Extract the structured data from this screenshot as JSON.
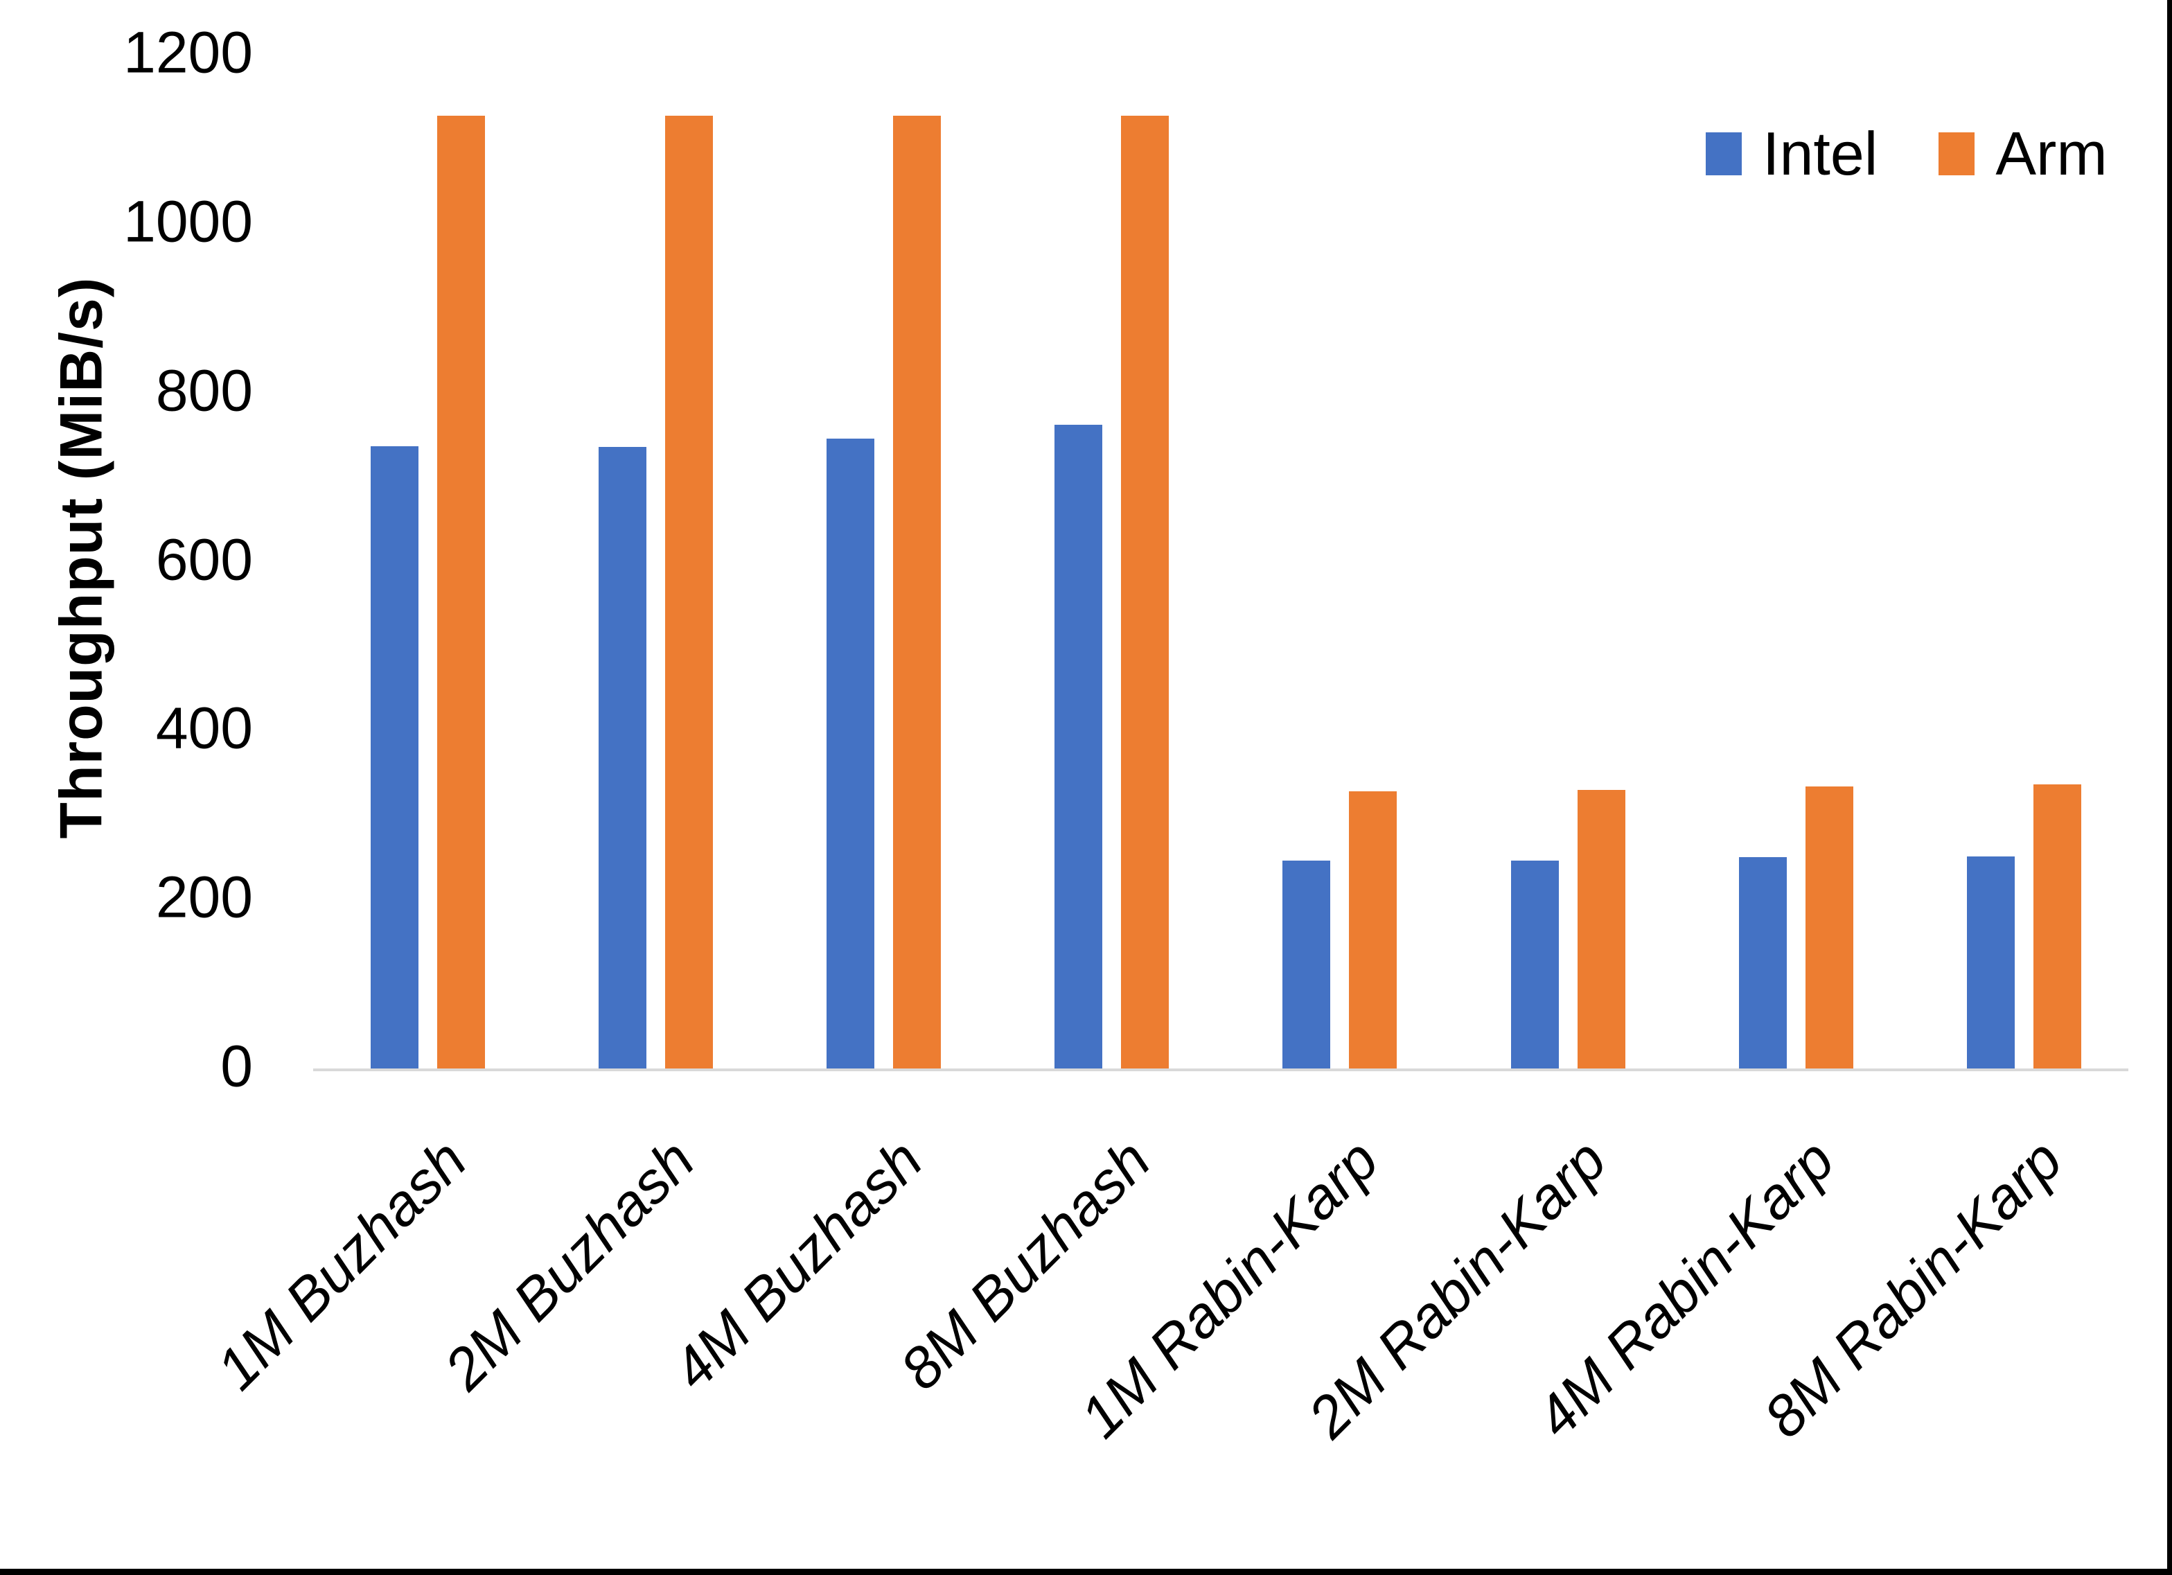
{
  "chart_data": {
    "type": "bar",
    "title": "",
    "xlabel": "",
    "ylabel": "Throughput (MiB/s)",
    "categories": [
      "1M Buzhash",
      "2M Buzhash",
      "4M Buzhash",
      "8M Buzhash",
      "1M Rabin-Karp",
      "2M Rabin-Karp",
      "4M Rabin-Karp",
      "8M Rabin-Karp"
    ],
    "series": [
      {
        "name": "Intel",
        "color": "#4472C4",
        "values": [
          737,
          736,
          746,
          762,
          246,
          246,
          250,
          251
        ]
      },
      {
        "name": "Arm",
        "color": "#ED7D31",
        "values": [
          1128,
          1128,
          1128,
          1128,
          328,
          330,
          334,
          336
        ]
      }
    ],
    "ylim": [
      0,
      1200
    ],
    "yticks": [
      0,
      200,
      400,
      600,
      800,
      1000,
      1200
    ],
    "ytick_step": 200,
    "grid": false,
    "legend_position": "top-right",
    "axis_line_color": "#D9D9D9",
    "text_color": "#000000",
    "background": "#FFFFFF",
    "page_border_color": "#000000"
  }
}
